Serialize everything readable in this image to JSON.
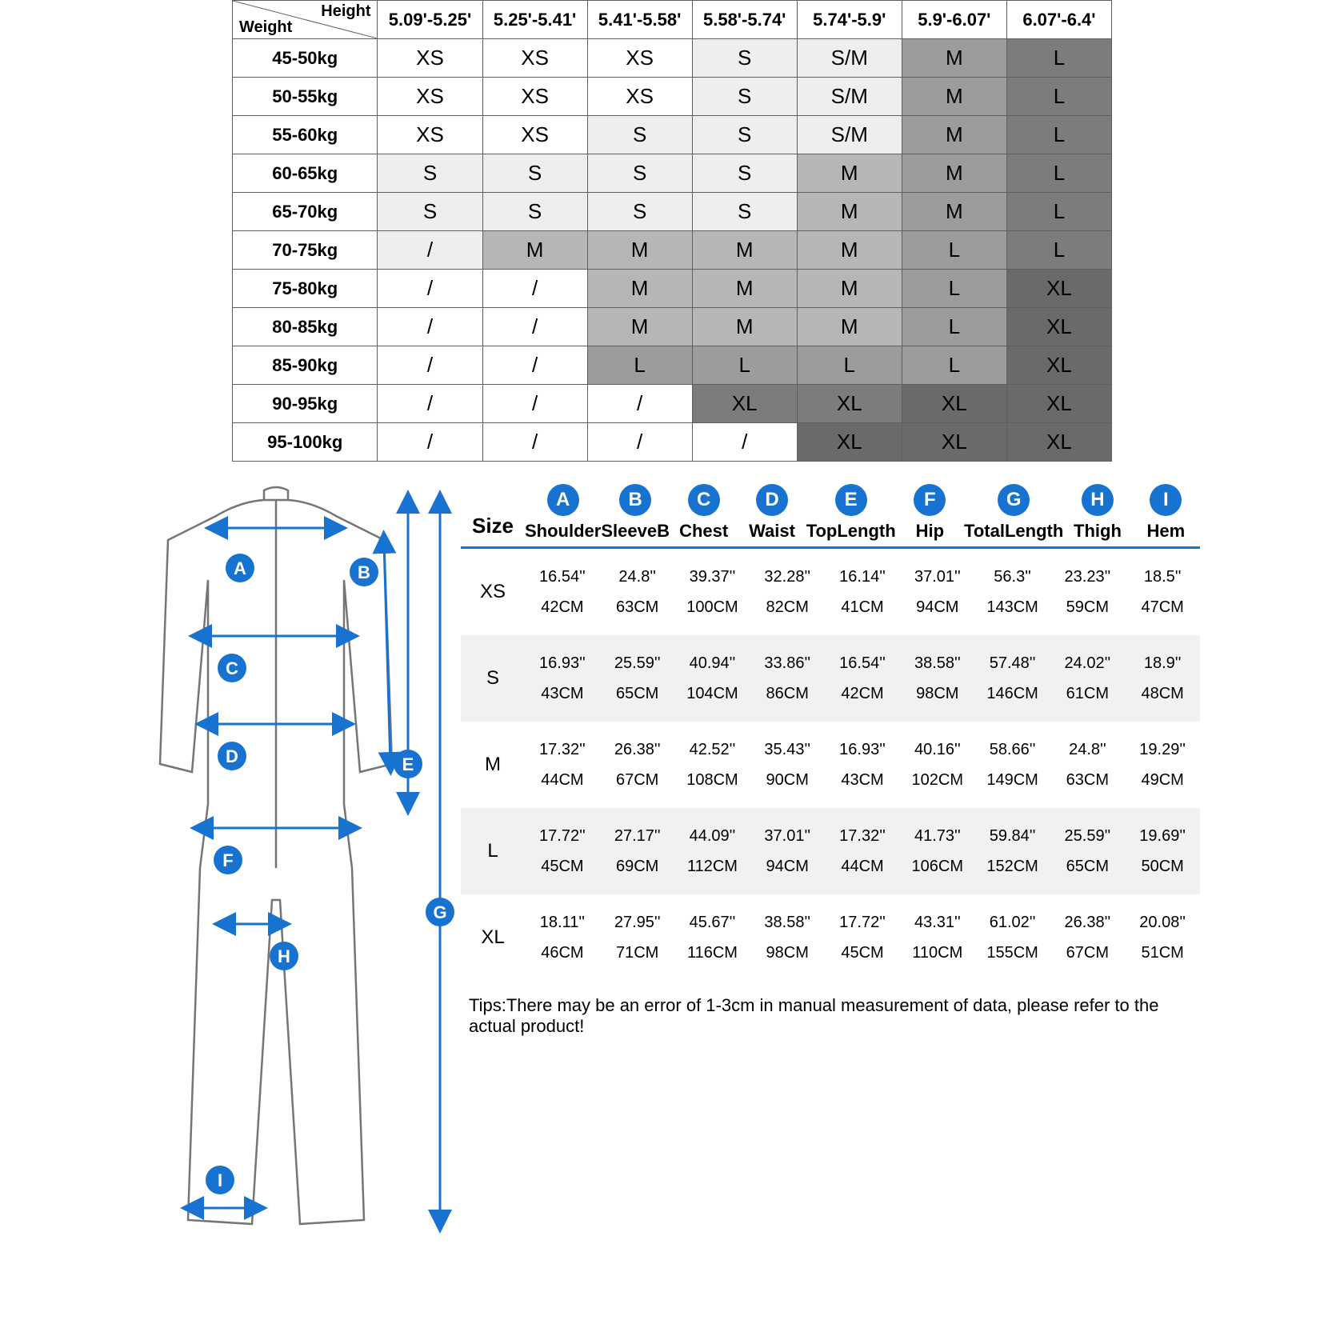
{
  "chart": {
    "corner_top": "Height",
    "corner_bottom": "Weight",
    "heights": [
      "5.09'-5.25'",
      "5.25'-5.41'",
      "5.41'-5.58'",
      "5.58'-5.74'",
      "5.74'-5.9'",
      "5.9'-6.07'",
      "6.07'-6.4'"
    ],
    "weights": [
      "45-50kg",
      "50-55kg",
      "55-60kg",
      "60-65kg",
      "65-70kg",
      "70-75kg",
      "75-80kg",
      "80-85kg",
      "85-90kg",
      "90-95kg",
      "95-100kg"
    ],
    "cells": [
      [
        {
          "v": "XS",
          "s": "shade-white"
        },
        {
          "v": "XS",
          "s": "shade-white"
        },
        {
          "v": "XS",
          "s": "shade-white"
        },
        {
          "v": "S",
          "s": "shade-lgrey"
        },
        {
          "v": "S/M",
          "s": "shade-lgrey"
        },
        {
          "v": "M",
          "s": "shade-grey"
        },
        {
          "v": "L",
          "s": "shade-dgrey"
        }
      ],
      [
        {
          "v": "XS",
          "s": "shade-white"
        },
        {
          "v": "XS",
          "s": "shade-white"
        },
        {
          "v": "XS",
          "s": "shade-white"
        },
        {
          "v": "S",
          "s": "shade-lgrey"
        },
        {
          "v": "S/M",
          "s": "shade-lgrey"
        },
        {
          "v": "M",
          "s": "shade-grey"
        },
        {
          "v": "L",
          "s": "shade-dgrey"
        }
      ],
      [
        {
          "v": "XS",
          "s": "shade-white"
        },
        {
          "v": "XS",
          "s": "shade-white"
        },
        {
          "v": "S",
          "s": "shade-lgrey"
        },
        {
          "v": "S",
          "s": "shade-lgrey"
        },
        {
          "v": "S/M",
          "s": "shade-lgrey"
        },
        {
          "v": "M",
          "s": "shade-grey"
        },
        {
          "v": "L",
          "s": "shade-dgrey"
        }
      ],
      [
        {
          "v": "S",
          "s": "shade-lgrey"
        },
        {
          "v": "S",
          "s": "shade-lgrey"
        },
        {
          "v": "S",
          "s": "shade-lgrey"
        },
        {
          "v": "S",
          "s": "shade-lgrey"
        },
        {
          "v": "M",
          "s": "shade-mgrey"
        },
        {
          "v": "M",
          "s": "shade-grey"
        },
        {
          "v": "L",
          "s": "shade-dgrey"
        }
      ],
      [
        {
          "v": "S",
          "s": "shade-lgrey"
        },
        {
          "v": "S",
          "s": "shade-lgrey"
        },
        {
          "v": "S",
          "s": "shade-lgrey"
        },
        {
          "v": "S",
          "s": "shade-lgrey"
        },
        {
          "v": "M",
          "s": "shade-mgrey"
        },
        {
          "v": "M",
          "s": "shade-grey"
        },
        {
          "v": "L",
          "s": "shade-dgrey"
        }
      ],
      [
        {
          "v": "/",
          "s": "shade-lgrey"
        },
        {
          "v": "M",
          "s": "shade-mgrey"
        },
        {
          "v": "M",
          "s": "shade-mgrey"
        },
        {
          "v": "M",
          "s": "shade-mgrey"
        },
        {
          "v": "M",
          "s": "shade-mgrey"
        },
        {
          "v": "L",
          "s": "shade-grey"
        },
        {
          "v": "L",
          "s": "shade-dgrey"
        }
      ],
      [
        {
          "v": "/",
          "s": "shade-white"
        },
        {
          "v": "/",
          "s": "shade-white"
        },
        {
          "v": "M",
          "s": "shade-mgrey"
        },
        {
          "v": "M",
          "s": "shade-mgrey"
        },
        {
          "v": "M",
          "s": "shade-mgrey"
        },
        {
          "v": "L",
          "s": "shade-grey"
        },
        {
          "v": "XL",
          "s": "shade-xgrey"
        }
      ],
      [
        {
          "v": "/",
          "s": "shade-white"
        },
        {
          "v": "/",
          "s": "shade-white"
        },
        {
          "v": "M",
          "s": "shade-mgrey"
        },
        {
          "v": "M",
          "s": "shade-mgrey"
        },
        {
          "v": "M",
          "s": "shade-mgrey"
        },
        {
          "v": "L",
          "s": "shade-grey"
        },
        {
          "v": "XL",
          "s": "shade-xgrey"
        }
      ],
      [
        {
          "v": "/",
          "s": "shade-white"
        },
        {
          "v": "/",
          "s": "shade-white"
        },
        {
          "v": "L",
          "s": "shade-grey"
        },
        {
          "v": "L",
          "s": "shade-grey"
        },
        {
          "v": "L",
          "s": "shade-grey"
        },
        {
          "v": "L",
          "s": "shade-grey"
        },
        {
          "v": "XL",
          "s": "shade-xgrey"
        }
      ],
      [
        {
          "v": "/",
          "s": "shade-white"
        },
        {
          "v": "/",
          "s": "shade-white"
        },
        {
          "v": "/",
          "s": "shade-white"
        },
        {
          "v": "XL",
          "s": "shade-dgrey"
        },
        {
          "v": "XL",
          "s": "shade-dgrey"
        },
        {
          "v": "XL",
          "s": "shade-xgrey"
        },
        {
          "v": "XL",
          "s": "shade-xgrey"
        }
      ],
      [
        {
          "v": "/",
          "s": "shade-white"
        },
        {
          "v": "/",
          "s": "shade-white"
        },
        {
          "v": "/",
          "s": "shade-white"
        },
        {
          "v": "/",
          "s": "shade-white"
        },
        {
          "v": "XL",
          "s": "shade-xgrey"
        },
        {
          "v": "XL",
          "s": "shade-xgrey"
        },
        {
          "v": "XL",
          "s": "shade-xgrey"
        }
      ]
    ]
  },
  "diagram": {
    "badges": {
      "A": "A",
      "B": "B",
      "C": "C",
      "D": "D",
      "E": "E",
      "F": "F",
      "G": "G",
      "H": "H",
      "I": "I"
    },
    "stroke": "#1772d0",
    "outline": "#757575",
    "badge_fill": "#1772d0",
    "badge_text": "#ffffff"
  },
  "measure": {
    "size_label": "Size",
    "cols": [
      {
        "key": "A",
        "name": "Shoulder"
      },
      {
        "key": "B",
        "name": "SleeveB"
      },
      {
        "key": "C",
        "name": "Chest"
      },
      {
        "key": "D",
        "name": "Waist"
      },
      {
        "key": "E",
        "name": "TopLength"
      },
      {
        "key": "F",
        "name": "Hip"
      },
      {
        "key": "G",
        "name": "TotalLength"
      },
      {
        "key": "H",
        "name": "Thigh"
      },
      {
        "key": "I",
        "name": "Hem"
      }
    ],
    "rows": [
      {
        "size": "XS",
        "in": [
          "16.54''",
          "24.8''",
          "39.37''",
          "32.28''",
          "16.14''",
          "37.01''",
          "56.3''",
          "23.23''",
          "18.5''"
        ],
        "cm": [
          "42CM",
          "63CM",
          "100CM",
          "82CM",
          "41CM",
          "94CM",
          "143CM",
          "59CM",
          "47CM"
        ]
      },
      {
        "size": "S",
        "in": [
          "16.93''",
          "25.59''",
          "40.94''",
          "33.86''",
          "16.54''",
          "38.58''",
          "57.48''",
          "24.02''",
          "18.9''"
        ],
        "cm": [
          "43CM",
          "65CM",
          "104CM",
          "86CM",
          "42CM",
          "98CM",
          "146CM",
          "61CM",
          "48CM"
        ]
      },
      {
        "size": "M",
        "in": [
          "17.32''",
          "26.38''",
          "42.52''",
          "35.43''",
          "16.93''",
          "40.16''",
          "58.66''",
          "24.8''",
          "19.29''"
        ],
        "cm": [
          "44CM",
          "67CM",
          "108CM",
          "90CM",
          "43CM",
          "102CM",
          "149CM",
          "63CM",
          "49CM"
        ]
      },
      {
        "size": "L",
        "in": [
          "17.72''",
          "27.17''",
          "44.09''",
          "37.01''",
          "17.32''",
          "41.73''",
          "59.84''",
          "25.59''",
          "19.69''"
        ],
        "cm": [
          "45CM",
          "69CM",
          "112CM",
          "94CM",
          "44CM",
          "106CM",
          "152CM",
          "65CM",
          "50CM"
        ]
      },
      {
        "size": "XL",
        "in": [
          "18.11''",
          "27.95''",
          "45.67''",
          "38.58''",
          "17.72''",
          "43.31''",
          "61.02''",
          "26.38''",
          "20.08''"
        ],
        "cm": [
          "46CM",
          "71CM",
          "116CM",
          "98CM",
          "45CM",
          "110CM",
          "155CM",
          "67CM",
          "51CM"
        ]
      }
    ],
    "tips": "Tips:There may be an error of 1-3cm in manual measurement of data, please refer to the actual product!"
  }
}
